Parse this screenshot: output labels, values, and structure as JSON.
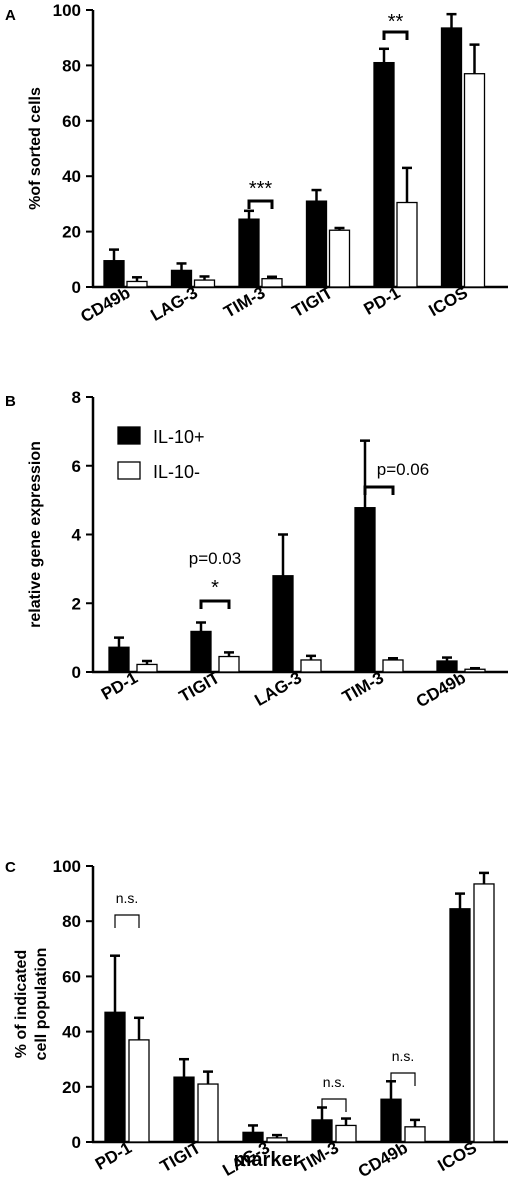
{
  "legend": {
    "series": [
      "IL-10+",
      "IL-10-"
    ]
  },
  "colors": {
    "filled": "#000000",
    "open": "#ffffff",
    "stroke": "#000000"
  },
  "figure_xlabel": "marker",
  "chart_data": [
    {
      "panel": "A",
      "type": "bar",
      "ylabel": "%of sorted cells",
      "ylim": [
        0,
        100
      ],
      "yticks": [
        0,
        20,
        40,
        60,
        80,
        100
      ],
      "categories": [
        "CD49b",
        "LAG-3",
        "TIM-3",
        "TIGIT",
        "PD-1",
        "ICOS"
      ],
      "series": [
        {
          "values": [
            9.5,
            6,
            24.5,
            31,
            81,
            93.5
          ],
          "errors": [
            4,
            2.5,
            3,
            4,
            5,
            5
          ]
        },
        {
          "values": [
            2,
            2.5,
            3,
            20.5,
            30.5,
            77
          ],
          "errors": [
            1.5,
            1.3,
            0.7,
            0.8,
            12.5,
            10.5
          ]
        }
      ],
      "annotations": [
        {
          "category": "TIM-3",
          "text": "***"
        },
        {
          "category": "PD-1",
          "text": "**"
        }
      ]
    },
    {
      "panel": "B",
      "type": "bar",
      "ylabel": "relative gene expression",
      "ylim": [
        0,
        8
      ],
      "yticks": [
        0,
        2,
        4,
        6,
        8
      ],
      "categories": [
        "PD-1",
        "TIGIT",
        "LAG-3",
        "TIM-3",
        "CD49b"
      ],
      "series": [
        {
          "values": [
            0.72,
            1.18,
            2.8,
            4.78,
            0.32
          ],
          "errors": [
            0.28,
            0.26,
            1.2,
            1.95,
            0.1
          ]
        },
        {
          "values": [
            0.22,
            0.45,
            0.35,
            0.35,
            0.08
          ],
          "errors": [
            0.1,
            0.12,
            0.12,
            0.05,
            0.03
          ]
        }
      ],
      "annotations": [
        {
          "category": "TIGIT",
          "text": "*",
          "note": "p=0.03"
        },
        {
          "category": "TIM-3",
          "text": "p=0.06"
        }
      ]
    },
    {
      "panel": "C",
      "type": "bar",
      "ylabel": [
        "% of  indicated",
        "cell population"
      ],
      "ylim": [
        0,
        100
      ],
      "yticks": [
        0,
        20,
        40,
        60,
        80,
        100
      ],
      "categories": [
        "PD-1",
        "TIGIT",
        "LAG-3",
        "TIM-3",
        "CD49b",
        "ICOS"
      ],
      "series": [
        {
          "values": [
            47,
            23.5,
            3.5,
            8,
            15.5,
            84.5
          ],
          "errors": [
            20.5,
            6.5,
            2.5,
            4.5,
            6.5,
            5.5
          ]
        },
        {
          "values": [
            37,
            21,
            1.5,
            6,
            5.5,
            93.5
          ],
          "errors": [
            8,
            4.5,
            1,
            2.5,
            2.5,
            4
          ]
        }
      ],
      "annotations": [
        {
          "category": "PD-1",
          "text": "n.s."
        },
        {
          "category": "TIM-3",
          "text": "n.s."
        },
        {
          "category": "CD49b",
          "text": "n.s."
        }
      ]
    }
  ]
}
